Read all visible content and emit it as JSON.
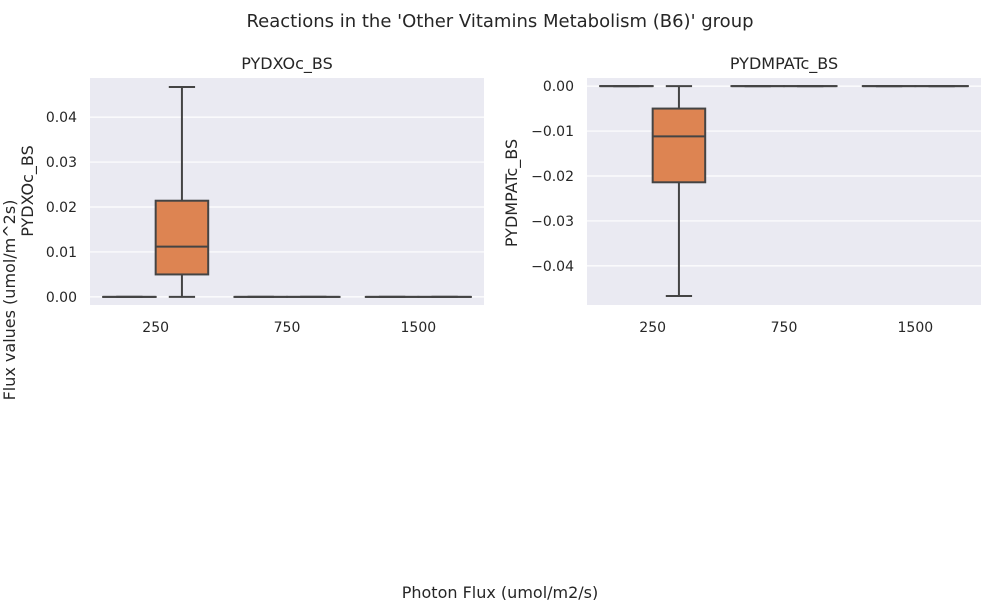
{
  "figure": {
    "title": "Reactions in the 'Other Vitamins Metabolism (B6)' group",
    "xlabel": "Photon Flux (umol/m2/s)",
    "ylabel": "Flux values (umol/m^2s)"
  },
  "colors": {
    "panel_bg": "#EAEAF2",
    "grid": "#FFFFFF",
    "box_fill_1": "#C44E52",
    "box_fill_2": "#DD8452",
    "line": "#444444"
  },
  "chart_data": [
    {
      "type": "box",
      "title": "PYDXOc_BS",
      "ylabel": "PYDXOc_BS",
      "categories": [
        "250",
        "750",
        "1500"
      ],
      "ylim": [
        -0.0018,
        0.0487
      ],
      "yticks": [
        0.0,
        0.01,
        0.02,
        0.03,
        0.04
      ],
      "ytick_labels": [
        "0.00",
        "0.01",
        "0.02",
        "0.03",
        "0.04"
      ],
      "grid": true,
      "groups": [
        {
          "category": "250",
          "boxes": [
            {
              "slot": 0,
              "min": 0.0,
              "q1": 0.0,
              "median": 0.0,
              "q3": 0.0,
              "max": 0.0
            },
            {
              "slot": 1,
              "min": 0.0,
              "q1": 0.005,
              "median": 0.0112,
              "q3": 0.0214,
              "max": 0.0467
            }
          ]
        },
        {
          "category": "750",
          "boxes": [
            {
              "slot": 0,
              "min": 0.0,
              "q1": 0.0,
              "median": 0.0,
              "q3": 0.0,
              "max": 0.0
            },
            {
              "slot": 1,
              "min": 0.0,
              "q1": 0.0,
              "median": 0.0,
              "q3": 0.0,
              "max": 0.0
            }
          ]
        },
        {
          "category": "1500",
          "boxes": [
            {
              "slot": 0,
              "min": 0.0,
              "q1": 0.0,
              "median": 0.0,
              "q3": 0.0,
              "max": 0.0
            },
            {
              "slot": 1,
              "min": 0.0,
              "q1": 0.0,
              "median": 0.0,
              "q3": 0.0,
              "max": 0.0
            }
          ]
        }
      ]
    },
    {
      "type": "box",
      "title": "PYDMPATc_BS",
      "ylabel": "PYDMPATc_BS",
      "categories": [
        "250",
        "750",
        "1500"
      ],
      "ylim": [
        -0.0487,
        0.0018
      ],
      "yticks": [
        0.0,
        -0.01,
        -0.02,
        -0.03,
        -0.04
      ],
      "ytick_labels": [
        "0.00",
        "−0.01",
        "−0.02",
        "−0.03",
        "−0.04"
      ],
      "grid": true,
      "groups": [
        {
          "category": "250",
          "boxes": [
            {
              "slot": 0,
              "min": 0.0,
              "q1": 0.0,
              "median": 0.0,
              "q3": 0.0,
              "max": 0.0
            },
            {
              "slot": 1,
              "min": -0.0467,
              "q1": -0.0214,
              "median": -0.0112,
              "q3": -0.005,
              "max": 0.0
            }
          ]
        },
        {
          "category": "750",
          "boxes": [
            {
              "slot": 0,
              "min": 0.0,
              "q1": 0.0,
              "median": 0.0,
              "q3": 0.0,
              "max": 0.0
            },
            {
              "slot": 1,
              "min": 0.0,
              "q1": 0.0,
              "median": 0.0,
              "q3": 0.0,
              "max": 0.0
            }
          ]
        },
        {
          "category": "1500",
          "boxes": [
            {
              "slot": 0,
              "min": 0.0,
              "q1": 0.0,
              "median": 0.0,
              "q3": 0.0,
              "max": 0.0
            },
            {
              "slot": 1,
              "min": 0.0,
              "q1": 0.0,
              "median": 0.0,
              "q3": 0.0,
              "max": 0.0
            }
          ]
        }
      ]
    }
  ]
}
